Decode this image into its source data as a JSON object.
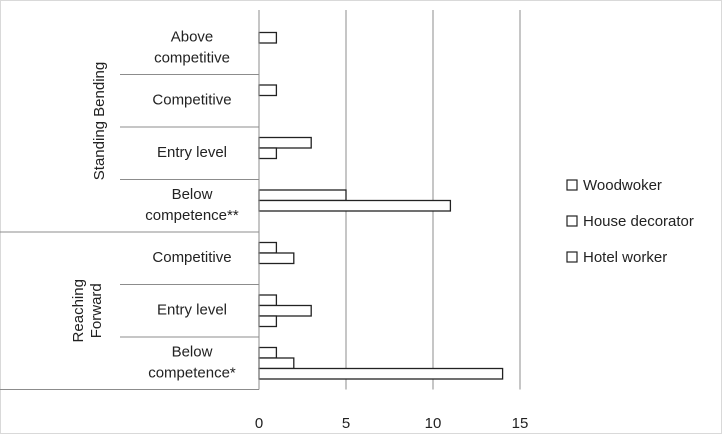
{
  "chart_data": {
    "type": "bar",
    "orientation": "horizontal",
    "title": "",
    "xlabel": "",
    "ylabel": "",
    "xlim": [
      0,
      15
    ],
    "x_ticks": [
      "0",
      "5",
      "10",
      "15"
    ],
    "grid": "vertical gridlines at 5, 10, 15",
    "legend_position": "right",
    "groups": [
      {
        "name": "Standing Bending",
        "categories": [
          "Above competitive",
          "Competitive",
          "Entry level",
          "Below competence**"
        ],
        "category_lines": [
          [
            "Above",
            "competitive"
          ],
          [
            "Competitive"
          ],
          [
            "Entry level"
          ],
          [
            "Below",
            "competence**"
          ]
        ]
      },
      {
        "name": "Reaching Forward",
        "name_lines": [
          "Reaching",
          "Forward"
        ],
        "categories": [
          "Competitive",
          "Entry level",
          "Below competence*"
        ],
        "category_lines": [
          [
            "Competitive"
          ],
          [
            "Entry level"
          ],
          [
            "Below",
            "competence*"
          ]
        ]
      }
    ],
    "series": [
      {
        "name": "Woodwoker",
        "color": "#ffffff",
        "values": [
          1,
          1,
          3,
          5,
          1,
          1,
          1
        ]
      },
      {
        "name": "House decorator",
        "color": "#ffffff",
        "values": [
          0,
          0,
          1,
          11,
          2,
          3,
          2
        ]
      },
      {
        "name": "Hotel worker",
        "color": "#ffffff",
        "values": [
          0,
          0,
          0,
          0,
          0,
          1,
          14
        ]
      }
    ]
  }
}
